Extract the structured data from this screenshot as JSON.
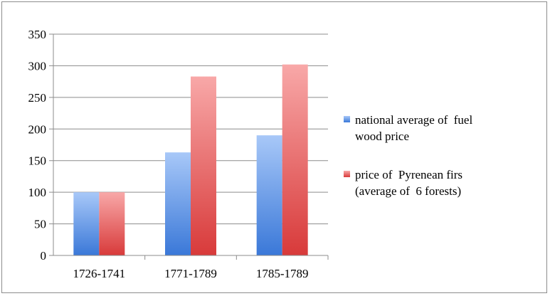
{
  "chart_data": {
    "type": "bar",
    "categories": [
      "1726-1741",
      "1771-1789",
      "1785-1789"
    ],
    "series": [
      {
        "name_lines": [
          "national average of  fuel",
          "wood price"
        ],
        "values": [
          100,
          163,
          190
        ],
        "color_light": "#a8c8f8",
        "color_dark": "#3a78d8"
      },
      {
        "name_lines": [
          "price of  Pyrenean firs",
          "(average of  6 forests)"
        ],
        "values": [
          100,
          283,
          302
        ],
        "color_light": "#f8a8a8",
        "color_dark": "#d83a3a"
      }
    ],
    "yticks": [
      "0",
      "50",
      "100",
      "150",
      "200",
      "250",
      "300",
      "350"
    ],
    "ylim": [
      0,
      350
    ],
    "grid": true,
    "legend": "right"
  }
}
